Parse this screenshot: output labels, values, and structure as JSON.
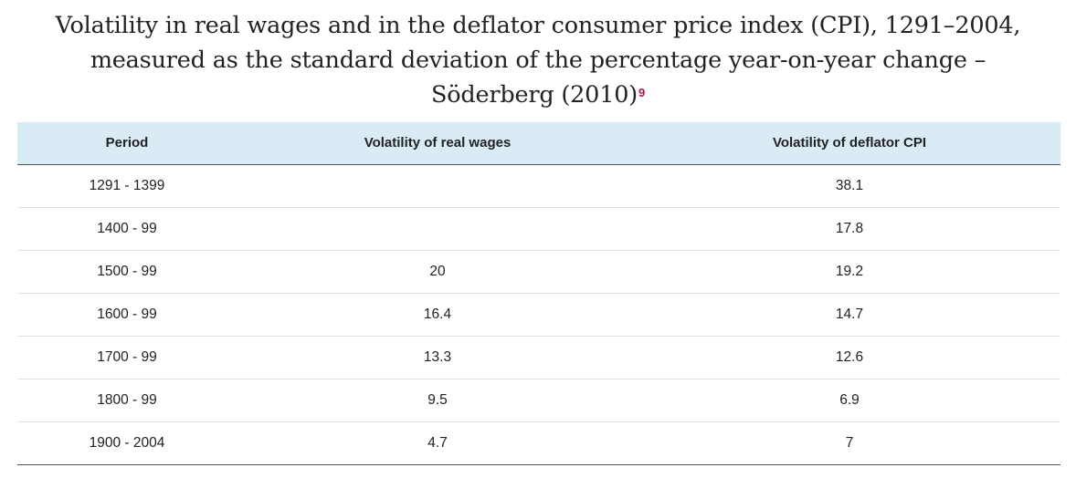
{
  "title": {
    "line1": "Volatility in real wages and in the deflator consumer price index (CPI), 1291–2004,",
    "line2": "measured as the standard deviation of the percentage year-on-year change –",
    "line3": "Söderberg (2010)",
    "footnote": "9"
  },
  "table": {
    "headers": [
      "Period",
      "Volatility of real wages",
      "Volatility of deflator CPI"
    ],
    "rows": [
      [
        "1291 - 1399",
        "",
        "38.1"
      ],
      [
        "1400 - 99",
        "",
        "17.8"
      ],
      [
        "1500 - 99",
        "20",
        "19.2"
      ],
      [
        "1600 - 99",
        "16.4",
        "14.7"
      ],
      [
        "1700 - 99",
        "13.3",
        "12.6"
      ],
      [
        "1800 - 99",
        "9.5",
        "6.9"
      ],
      [
        "1900 - 2004",
        "4.7",
        "7"
      ]
    ]
  },
  "colors": {
    "header_bg": "#d9ecf6",
    "footnote": "#b5123a",
    "text": "#222222"
  }
}
